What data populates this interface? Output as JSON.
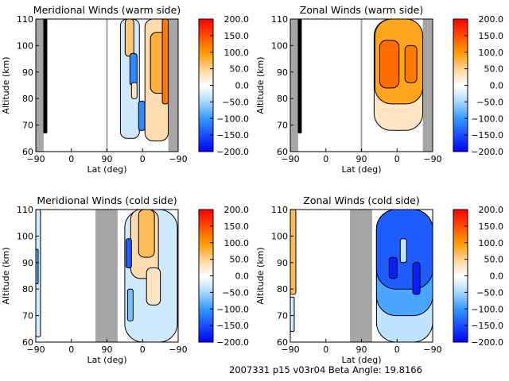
{
  "footer": "2007331 p15 v03r04 Beta Angle: 19.8166",
  "colorscale": {
    "min": -200,
    "max": 200,
    "stops": [
      {
        "v": -200,
        "c": "#0000ff"
      },
      {
        "v": -100,
        "c": "#3399ff"
      },
      {
        "v": -40,
        "c": "#bfe2ff"
      },
      {
        "v": 0,
        "c": "#ffffff"
      },
      {
        "v": 40,
        "c": "#ffdcb0"
      },
      {
        "v": 100,
        "c": "#ff9900"
      },
      {
        "v": 200,
        "c": "#ff0000"
      }
    ]
  },
  "missing_color": "#a6a6a6",
  "chart_data": [
    {
      "type": "heatmap",
      "title": "Meridional Winds (warm side)",
      "xlabel": "Lat (deg)",
      "ylabel": "Altitude (km)",
      "xticks": [
        "-90",
        "0",
        "90",
        "0",
        "-90"
      ],
      "yticks": [
        "60",
        "70",
        "80",
        "90",
        "100",
        "110"
      ],
      "ylim": [
        60,
        110
      ],
      "colorbar_ticks": [
        "200.0",
        "150.0",
        "100.0",
        "50.0",
        "0.0",
        "-50.0",
        "-100.0",
        "-150.0",
        "-200.0"
      ],
      "missing": [
        {
          "leg": "asc",
          "lat": [
            -90,
            -70
          ]
        },
        {
          "leg": "desc",
          "lat": [
            -65,
            -90
          ]
        }
      ],
      "features": [
        {
          "leg": "asc",
          "lat": [
            -70,
            -62
          ],
          "alt": [
            67,
            110
          ],
          "value": "dense"
        },
        {
          "leg": "desc",
          "lat": [
            56,
            8
          ],
          "alt": [
            65,
            110
          ],
          "value": -30
        },
        {
          "leg": "desc",
          "lat": [
            44,
            22
          ],
          "alt": [
            96,
            110
          ],
          "value": 60
        },
        {
          "leg": "desc",
          "lat": [
            32,
            14
          ],
          "alt": [
            85,
            97
          ],
          "value": -110
        },
        {
          "leg": "desc",
          "lat": [
            28,
            14
          ],
          "alt": [
            80,
            86
          ],
          "value": 30
        },
        {
          "leg": "desc",
          "lat": [
            10,
            -6
          ],
          "alt": [
            68,
            79
          ],
          "value": -110
        },
        {
          "leg": "desc",
          "lat": [
            -6,
            -65
          ],
          "alt": [
            64,
            110
          ],
          "value": 40
        },
        {
          "leg": "desc",
          "lat": [
            -20,
            -65
          ],
          "alt": [
            82,
            105
          ],
          "value": 80
        },
        {
          "leg": "desc",
          "lat": [
            -50,
            -65
          ],
          "alt": [
            78,
            110
          ],
          "value": 120
        }
      ]
    },
    {
      "type": "heatmap",
      "title": "Zonal Winds (warm side)",
      "xlabel": "Lat (deg)",
      "ylabel": "Altitude (km)",
      "xticks": [
        "-90",
        "0",
        "90",
        "0",
        "-90"
      ],
      "yticks": [
        "60",
        "70",
        "80",
        "90",
        "100",
        "110"
      ],
      "ylim": [
        60,
        110
      ],
      "colorbar_ticks": [
        "200.0",
        "150.0",
        "100.0",
        "50.0",
        "0.0",
        "-50.0",
        "-100.0",
        "-150.0",
        "-200.0"
      ],
      "missing": [
        {
          "leg": "asc",
          "lat": [
            -90,
            -70
          ]
        },
        {
          "leg": "desc",
          "lat": [
            -65,
            -90
          ]
        }
      ],
      "features": [
        {
          "leg": "asc",
          "lat": [
            -70,
            -62
          ],
          "alt": [
            67,
            110
          ],
          "value": "dense"
        },
        {
          "leg": "desc",
          "lat": [
            58,
            -65
          ],
          "alt": [
            68,
            110
          ],
          "value": 30
        },
        {
          "leg": "desc",
          "lat": [
            56,
            -65
          ],
          "alt": [
            78,
            110
          ],
          "value": 90
        },
        {
          "leg": "desc",
          "lat": [
            44,
            -5
          ],
          "alt": [
            84,
            102
          ],
          "value": 130
        },
        {
          "leg": "desc",
          "lat": [
            -20,
            -50
          ],
          "alt": [
            86,
            100
          ],
          "value": 120
        }
      ]
    },
    {
      "type": "heatmap",
      "title": "Meridional Winds (cold side)",
      "xlabel": "Lat (deg)",
      "ylabel": "Altitude (km)",
      "xticks": [
        "-90",
        "0",
        "90",
        "0",
        "-90"
      ],
      "yticks": [
        "60",
        "70",
        "80",
        "90",
        "100",
        "110"
      ],
      "ylim": [
        60,
        110
      ],
      "colorbar_ticks": [
        "200.0",
        "150.0",
        "100.0",
        "50.0",
        "0.0",
        "-50.0",
        "-100.0",
        "-150.0",
        "-200.0"
      ],
      "missing": [
        {
          "leg": "asc",
          "lat": [
            61,
            90
          ]
        },
        {
          "leg": "desc",
          "lat": [
            90,
            63
          ]
        }
      ],
      "features": [
        {
          "leg": "asc",
          "lat": [
            -90,
            -78
          ],
          "alt": [
            62,
            110
          ],
          "value": -30
        },
        {
          "leg": "asc",
          "lat": [
            -90,
            -84
          ],
          "alt": [
            82,
            95
          ],
          "value": -80
        },
        {
          "leg": "desc",
          "lat": [
            45,
            -88
          ],
          "alt": [
            60,
            110
          ],
          "value": -30
        },
        {
          "leg": "desc",
          "lat": [
            30,
            -40
          ],
          "alt": [
            84,
            110
          ],
          "value": 40
        },
        {
          "leg": "desc",
          "lat": [
            10,
            -30
          ],
          "alt": [
            92,
            110
          ],
          "value": 70
        },
        {
          "leg": "desc",
          "lat": [
            42,
            28
          ],
          "alt": [
            88,
            99
          ],
          "value": -140
        },
        {
          "leg": "desc",
          "lat": [
            -10,
            -45
          ],
          "alt": [
            74,
            88
          ],
          "value": 30
        },
        {
          "leg": "desc",
          "lat": [
            38,
            24
          ],
          "alt": [
            68,
            80
          ],
          "value": -70
        }
      ]
    },
    {
      "type": "heatmap",
      "title": "Zonal Winds (cold side)",
      "xlabel": "Lat (deg)",
      "ylabel": "Altitude (km)",
      "xticks": [
        "-90",
        "0",
        "90",
        "0",
        "-90"
      ],
      "yticks": [
        "60",
        "70",
        "80",
        "90",
        "100",
        "110"
      ],
      "ylim": [
        60,
        110
      ],
      "colorbar_ticks": [
        "200.0",
        "150.0",
        "100.0",
        "50.0",
        "0.0",
        "-50.0",
        "-100.0",
        "-150.0",
        "-200.0"
      ],
      "missing": [
        {
          "leg": "asc",
          "lat": [
            61,
            90
          ]
        },
        {
          "leg": "desc",
          "lat": [
            90,
            63
          ]
        }
      ],
      "features": [
        {
          "leg": "asc",
          "lat": [
            -90,
            -76
          ],
          "alt": [
            78,
            110
          ],
          "value": 70
        },
        {
          "leg": "asc",
          "lat": [
            -90,
            -80
          ],
          "alt": [
            64,
            77
          ],
          "value": -30
        },
        {
          "leg": "desc",
          "lat": [
            52,
            -90
          ],
          "alt": [
            60,
            110
          ],
          "value": -40
        },
        {
          "leg": "desc",
          "lat": [
            52,
            -90
          ],
          "alt": [
            70,
            110
          ],
          "value": -90
        },
        {
          "leg": "desc",
          "lat": [
            52,
            -90
          ],
          "alt": [
            80,
            110
          ],
          "value": -140
        },
        {
          "leg": "desc",
          "lat": [
            20,
            0
          ],
          "alt": [
            84,
            92
          ],
          "value": -180
        },
        {
          "leg": "desc",
          "lat": [
            -40,
            -58
          ],
          "alt": [
            78,
            90
          ],
          "value": -180
        },
        {
          "leg": "desc",
          "lat": [
            -8,
            -24
          ],
          "alt": [
            90,
            99
          ],
          "value": -40
        }
      ]
    }
  ]
}
